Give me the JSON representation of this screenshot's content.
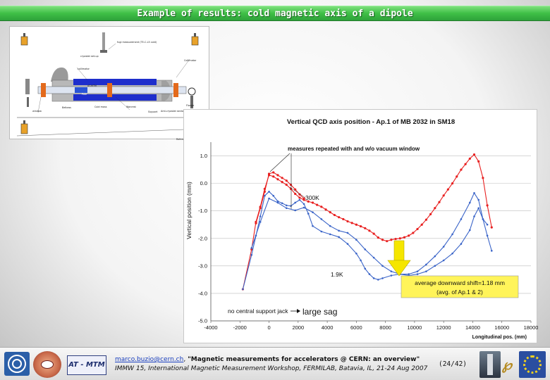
{
  "slide": {
    "title": "Example of results: cold magnetic axis of a dipole"
  },
  "diagram": {
    "labels": {
      "l1": "fugi measurement (TE-C-L5 cold)",
      "l2": "cryostat set-up",
      "l3": "Collimator",
      "l4": "collimator",
      "l5": "window",
      "l6": "Bellows",
      "l7": "Cold mass",
      "l8": "Pole",
      "l9": "AT-MTM",
      "l10": "Wanrest",
      "l11": "Support",
      "l12": "Flange",
      "l13": "Anti-cryostat sector",
      "l14": "Reference point"
    }
  },
  "chart_data": {
    "type": "line",
    "title": "Vertical QCD axis position - Ap.1 of MB 2032 in SM18",
    "xlabel": "Longitudinal pos. (mm)",
    "ylabel": "Vertical position (mm)",
    "xlim": [
      -4000,
      18000
    ],
    "ylim": [
      -5.0,
      1.5
    ],
    "x_ticks": [
      "-4000",
      "-2000",
      "0",
      "2000",
      "4000",
      "6000",
      "8000",
      "10000",
      "12000",
      "14000",
      "16000",
      "18000"
    ],
    "y_ticks": [
      "-5.0",
      "-4.0",
      "-3.0",
      "-2.0",
      "-1.0",
      "0.0",
      "1.0"
    ],
    "series": [
      {
        "color": "#e82020",
        "x": [
          -1800,
          -1200,
          -900,
          -600,
          -300,
          0,
          300,
          600,
          900,
          1200,
          1500,
          1800,
          2100,
          2400,
          2700,
          3000,
          3300,
          3600,
          3900,
          4200,
          4500,
          4800,
          5100,
          5400,
          5700,
          6000,
          6300,
          6600,
          6900,
          7200,
          7500,
          7800,
          8100,
          8400,
          8700,
          9000,
          9300,
          9600,
          9900,
          10200,
          10500,
          10800,
          11100,
          11400,
          11700,
          12000,
          12300,
          12600,
          12900,
          13200,
          13500,
          13800,
          14100,
          14400,
          14700,
          15000,
          15300
        ],
        "values": [
          -3.85,
          -2.4,
          -1.4,
          -0.85,
          -0.2,
          0.3,
          0.25,
          0.15,
          0.05,
          -0.05,
          -0.2,
          -0.38,
          -0.52,
          -0.6,
          -0.66,
          -0.7,
          -0.78,
          -0.85,
          -0.95,
          -1.05,
          -1.15,
          -1.23,
          -1.3,
          -1.38,
          -1.44,
          -1.5,
          -1.56,
          -1.63,
          -1.72,
          -1.83,
          -1.97,
          -2.05,
          -2.1,
          -2.05,
          -2.02,
          -2.0,
          -1.96,
          -1.9,
          -1.8,
          -1.66,
          -1.5,
          -1.32,
          -1.12,
          -0.9,
          -0.68,
          -0.44,
          -0.22,
          0.0,
          0.25,
          0.5,
          0.7,
          0.9,
          1.05,
          0.8,
          0.2,
          -0.8,
          -1.6
        ]
      },
      {
        "color": "#e82020",
        "x": [
          -900,
          -600,
          -300,
          0,
          300,
          600,
          900,
          1200,
          1500,
          1800,
          2100,
          2400
        ],
        "values": [
          -1.45,
          -0.9,
          -0.3,
          0.35,
          0.4,
          0.3,
          0.2,
          0.1,
          -0.05,
          -0.22,
          -0.4,
          -0.55
        ]
      },
      {
        "color": "#3a64c8",
        "x": [
          -1800,
          -1200,
          -900,
          -600,
          -300,
          0,
          300,
          600,
          900,
          1200,
          1500,
          1800,
          2100,
          2400,
          2700,
          3000,
          3600,
          4200,
          4800,
          5400,
          6000,
          6300,
          6600,
          6900,
          7200,
          7500,
          7800,
          8400,
          9000,
          9600,
          10200,
          10800,
          11400,
          12000,
          12600,
          13200,
          13800,
          14100,
          14400,
          14700,
          15000
        ],
        "values": [
          -3.85,
          -2.6,
          -1.9,
          -1.2,
          -0.45,
          -0.3,
          -0.45,
          -0.65,
          -0.72,
          -0.8,
          -0.82,
          -0.7,
          -0.6,
          -0.75,
          -1.1,
          -1.55,
          -1.75,
          -1.85,
          -1.95,
          -2.2,
          -2.55,
          -2.8,
          -3.1,
          -3.3,
          -3.45,
          -3.5,
          -3.45,
          -3.35,
          -3.3,
          -3.3,
          -3.2,
          -2.95,
          -2.65,
          -2.3,
          -1.85,
          -1.3,
          -0.7,
          -0.35,
          -0.6,
          -1.3,
          -1.5
        ]
      },
      {
        "color": "#3a64c8",
        "x": [
          -1200,
          -600,
          0,
          600,
          1200,
          1800,
          2400,
          3000,
          3600,
          4200,
          4800,
          5400,
          6000,
          6600,
          7200,
          7800,
          8400,
          9000,
          9600,
          10200,
          10800,
          11400,
          12000,
          12600,
          13200,
          13800,
          14100,
          14400,
          14700,
          15000,
          15300
        ],
        "values": [
          -2.35,
          -1.4,
          -0.55,
          -0.7,
          -0.9,
          -0.98,
          -0.88,
          -1.05,
          -1.3,
          -1.55,
          -1.72,
          -1.8,
          -2.05,
          -2.4,
          -2.7,
          -3.0,
          -3.2,
          -3.3,
          -3.35,
          -3.3,
          -3.2,
          -3.0,
          -2.8,
          -2.55,
          -2.2,
          -1.7,
          -1.2,
          -0.9,
          -1.3,
          -1.9,
          -2.45
        ]
      }
    ],
    "annotations": {
      "measures": "measures repeated with and w/o vacuum window",
      "k300": "300K",
      "k19": "1.9K",
      "shift_line1": "average downward shift=1.18 mm",
      "shift_line2": "(avg. of Ap.1 & 2)",
      "jack": "no central support jack",
      "sag": "large sag"
    }
  },
  "footer": {
    "email": "marco.buzio@cern.ch",
    "separator": ", ",
    "talk_title": "\"Magnetic measurements for accelerators @ CERN: an overview\"",
    "event": "IMMW 15, International Magnetic Measurement Workshop,  FERMILAB, Batavia, IL, 21-24 Aug 2007",
    "page": "(24/42)",
    "atmtm_logo": "AT - MTM",
    "fermi_logo": "℘"
  }
}
